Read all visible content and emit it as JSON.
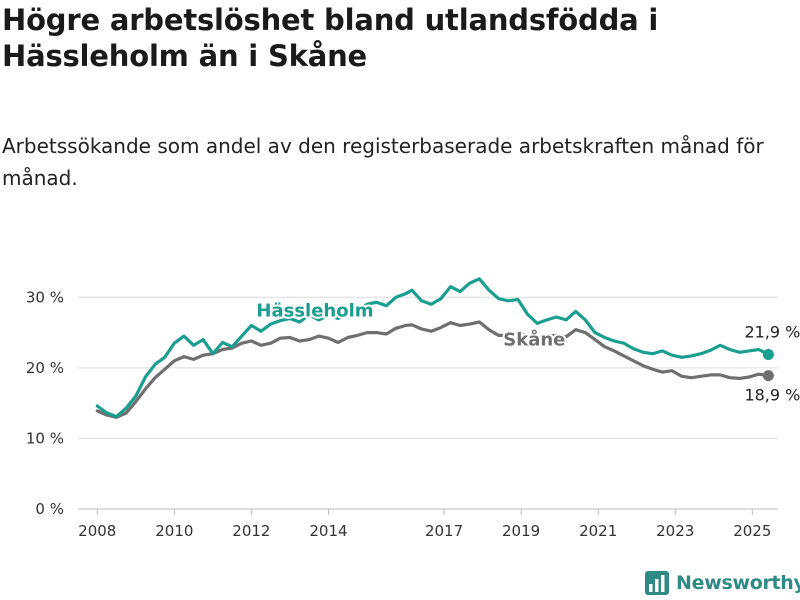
{
  "title": "Högre arbetslöshet bland utlandsfödda i Hässleholm än i Skåne",
  "subtitle": "Arbetssökande som andel av den registerbaserade arbetskraften månad för månad.",
  "brand": {
    "name": "Newsworthy",
    "color": "#2f8a86"
  },
  "chart_data": {
    "type": "line",
    "xlabel": "",
    "ylabel": "",
    "ylim": [
      0,
      35
    ],
    "xlim": [
      "2007-07",
      "2025-09"
    ],
    "y_ticks": [
      0,
      10,
      20,
      30
    ],
    "y_tick_labels": [
      "0 %",
      "10 %",
      "20 %",
      "30 %"
    ],
    "x_ticks": [
      "2008-01",
      "2010-01",
      "2012-01",
      "2014-01",
      "2017-01",
      "2019-01",
      "2021-01",
      "2023-01",
      "2025-01"
    ],
    "x_tick_labels": [
      "2008",
      "2010",
      "2012",
      "2014",
      "2017",
      "2019",
      "2021",
      "2023",
      "2025"
    ],
    "grid": true,
    "legend": "inline labels",
    "series": [
      {
        "name": "Hässleholm",
        "color": "#1a9e8f",
        "end_label": "21,9 %",
        "points": [
          [
            "2008-01",
            14.6
          ],
          [
            "2008-04",
            13.6
          ],
          [
            "2008-07",
            13.1
          ],
          [
            "2008-10",
            14.3
          ],
          [
            "2009-01",
            16.0
          ],
          [
            "2009-04",
            18.7
          ],
          [
            "2009-07",
            20.5
          ],
          [
            "2009-10",
            21.5
          ],
          [
            "2010-01",
            23.5
          ],
          [
            "2010-04",
            24.5
          ],
          [
            "2010-07",
            23.2
          ],
          [
            "2010-10",
            24.0
          ],
          [
            "2011-01",
            22.0
          ],
          [
            "2011-04",
            23.6
          ],
          [
            "2011-07",
            23.0
          ],
          [
            "2011-10",
            24.5
          ],
          [
            "2012-01",
            26.0
          ],
          [
            "2012-04",
            25.2
          ],
          [
            "2012-07",
            26.2
          ],
          [
            "2012-10",
            26.7
          ],
          [
            "2013-01",
            27.0
          ],
          [
            "2013-04",
            26.5
          ],
          [
            "2013-07",
            27.5
          ],
          [
            "2013-10",
            26.8
          ],
          [
            "2014-01",
            27.5
          ],
          [
            "2014-04",
            27.0
          ],
          [
            "2014-07",
            27.8
          ],
          [
            "2014-10",
            28.0
          ],
          [
            "2015-01",
            29.0
          ],
          [
            "2015-04",
            29.3
          ],
          [
            "2015-07",
            28.8
          ],
          [
            "2015-10",
            30.0
          ],
          [
            "2016-01",
            30.5
          ],
          [
            "2016-03",
            31.0
          ],
          [
            "2016-06",
            29.5
          ],
          [
            "2016-09",
            29.0
          ],
          [
            "2016-12",
            29.8
          ],
          [
            "2017-03",
            31.5
          ],
          [
            "2017-06",
            30.8
          ],
          [
            "2017-09",
            32.0
          ],
          [
            "2017-12",
            32.6
          ],
          [
            "2018-03",
            31.0
          ],
          [
            "2018-06",
            29.8
          ],
          [
            "2018-09",
            29.5
          ],
          [
            "2018-12",
            29.7
          ],
          [
            "2019-03",
            27.6
          ],
          [
            "2019-06",
            26.3
          ],
          [
            "2019-09",
            26.8
          ],
          [
            "2019-12",
            27.2
          ],
          [
            "2020-03",
            26.8
          ],
          [
            "2020-06",
            28.0
          ],
          [
            "2020-09",
            26.8
          ],
          [
            "2020-12",
            25.0
          ],
          [
            "2021-03",
            24.3
          ],
          [
            "2021-06",
            23.8
          ],
          [
            "2021-09",
            23.5
          ],
          [
            "2021-12",
            22.7
          ],
          [
            "2022-03",
            22.2
          ],
          [
            "2022-06",
            22.0
          ],
          [
            "2022-09",
            22.4
          ],
          [
            "2022-12",
            21.8
          ],
          [
            "2023-03",
            21.5
          ],
          [
            "2023-06",
            21.7
          ],
          [
            "2023-09",
            22.0
          ],
          [
            "2023-12",
            22.5
          ],
          [
            "2024-03",
            23.2
          ],
          [
            "2024-06",
            22.6
          ],
          [
            "2024-09",
            22.2
          ],
          [
            "2024-12",
            22.4
          ],
          [
            "2025-03",
            22.6
          ],
          [
            "2025-06",
            21.9
          ]
        ]
      },
      {
        "name": "Skåne",
        "color": "#6f6f6f",
        "end_label": "18,9 %",
        "points": [
          [
            "2008-01",
            13.9
          ],
          [
            "2008-04",
            13.3
          ],
          [
            "2008-07",
            13.0
          ],
          [
            "2008-10",
            13.6
          ],
          [
            "2009-01",
            15.2
          ],
          [
            "2009-04",
            17.0
          ],
          [
            "2009-07",
            18.6
          ],
          [
            "2009-10",
            19.8
          ],
          [
            "2010-01",
            21.0
          ],
          [
            "2010-04",
            21.6
          ],
          [
            "2010-07",
            21.2
          ],
          [
            "2010-10",
            21.8
          ],
          [
            "2011-01",
            22.0
          ],
          [
            "2011-04",
            22.6
          ],
          [
            "2011-07",
            22.8
          ],
          [
            "2011-10",
            23.5
          ],
          [
            "2012-01",
            23.8
          ],
          [
            "2012-04",
            23.2
          ],
          [
            "2012-07",
            23.5
          ],
          [
            "2012-10",
            24.2
          ],
          [
            "2013-01",
            24.3
          ],
          [
            "2013-04",
            23.8
          ],
          [
            "2013-07",
            24.0
          ],
          [
            "2013-10",
            24.5
          ],
          [
            "2014-01",
            24.2
          ],
          [
            "2014-04",
            23.6
          ],
          [
            "2014-07",
            24.3
          ],
          [
            "2014-10",
            24.6
          ],
          [
            "2015-01",
            25.0
          ],
          [
            "2015-04",
            25.0
          ],
          [
            "2015-07",
            24.8
          ],
          [
            "2015-10",
            25.6
          ],
          [
            "2016-01",
            26.0
          ],
          [
            "2016-03",
            26.1
          ],
          [
            "2016-06",
            25.5
          ],
          [
            "2016-09",
            25.2
          ],
          [
            "2016-12",
            25.7
          ],
          [
            "2017-03",
            26.4
          ],
          [
            "2017-06",
            26.0
          ],
          [
            "2017-09",
            26.2
          ],
          [
            "2017-12",
            26.5
          ],
          [
            "2018-03",
            25.4
          ],
          [
            "2018-06",
            24.6
          ],
          [
            "2018-09",
            24.6
          ],
          [
            "2018-12",
            24.8
          ],
          [
            "2019-03",
            24.6
          ],
          [
            "2019-06",
            24.3
          ],
          [
            "2019-09",
            24.5
          ],
          [
            "2019-12",
            24.6
          ],
          [
            "2020-03",
            24.4
          ],
          [
            "2020-06",
            25.4
          ],
          [
            "2020-09",
            25.0
          ],
          [
            "2020-12",
            24.0
          ],
          [
            "2021-03",
            23.0
          ],
          [
            "2021-06",
            22.4
          ],
          [
            "2021-09",
            21.7
          ],
          [
            "2021-12",
            21.0
          ],
          [
            "2022-03",
            20.3
          ],
          [
            "2022-06",
            19.8
          ],
          [
            "2022-09",
            19.4
          ],
          [
            "2022-12",
            19.6
          ],
          [
            "2023-03",
            18.8
          ],
          [
            "2023-06",
            18.6
          ],
          [
            "2023-09",
            18.8
          ],
          [
            "2023-12",
            19.0
          ],
          [
            "2024-03",
            19.0
          ],
          [
            "2024-06",
            18.6
          ],
          [
            "2024-09",
            18.5
          ],
          [
            "2024-12",
            18.7
          ],
          [
            "2025-03",
            19.1
          ],
          [
            "2025-06",
            18.9
          ]
        ]
      }
    ]
  }
}
